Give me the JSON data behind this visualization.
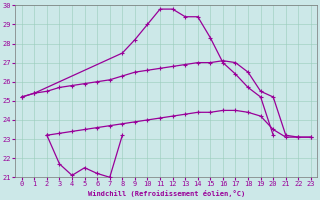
{
  "xlabel": "Windchill (Refroidissement éolien,°C)",
  "xlim": [
    -0.5,
    23.5
  ],
  "ylim": [
    21,
    30
  ],
  "background_color": "#cce8e8",
  "grid_color": "#99ccbb",
  "line_color": "#990099",
  "line_width": 0.9,
  "marker_size": 2.5,
  "lines": [
    {
      "x": [
        0,
        1,
        8,
        9,
        10,
        11,
        12,
        13,
        14,
        15,
        16,
        17,
        18,
        19,
        20
      ],
      "y": [
        25.2,
        25.4,
        27.5,
        28.2,
        29.0,
        29.8,
        29.8,
        29.4,
        29.4,
        28.3,
        27.0,
        26.4,
        25.7,
        25.2,
        23.2
      ]
    },
    {
      "x": [
        0,
        1,
        2,
        3,
        4,
        5,
        6,
        7,
        8,
        9,
        10,
        11,
        12,
        13,
        14,
        15,
        16,
        17,
        18,
        19,
        20,
        21,
        22,
        23
      ],
      "y": [
        25.2,
        25.4,
        25.5,
        25.7,
        25.8,
        25.9,
        26.0,
        26.1,
        26.3,
        26.5,
        26.6,
        26.7,
        26.8,
        26.9,
        27.0,
        27.0,
        27.1,
        27.0,
        26.5,
        25.5,
        25.2,
        23.2,
        23.1,
        23.1
      ]
    },
    {
      "x": [
        2,
        3,
        4,
        5,
        6,
        7,
        8,
        9,
        10,
        11,
        12,
        13,
        14,
        15,
        16,
        17,
        18,
        19,
        20,
        21,
        22,
        23
      ],
      "y": [
        23.2,
        23.3,
        23.4,
        23.5,
        23.6,
        23.7,
        23.8,
        23.9,
        24.0,
        24.1,
        24.2,
        24.3,
        24.4,
        24.4,
        24.5,
        24.5,
        24.4,
        24.2,
        23.5,
        23.1,
        23.1,
        23.1
      ]
    },
    {
      "x": [
        2,
        3,
        4,
        5,
        6,
        7,
        8
      ],
      "y": [
        23.2,
        21.7,
        21.1,
        21.5,
        21.2,
        21.0,
        23.2
      ]
    }
  ]
}
